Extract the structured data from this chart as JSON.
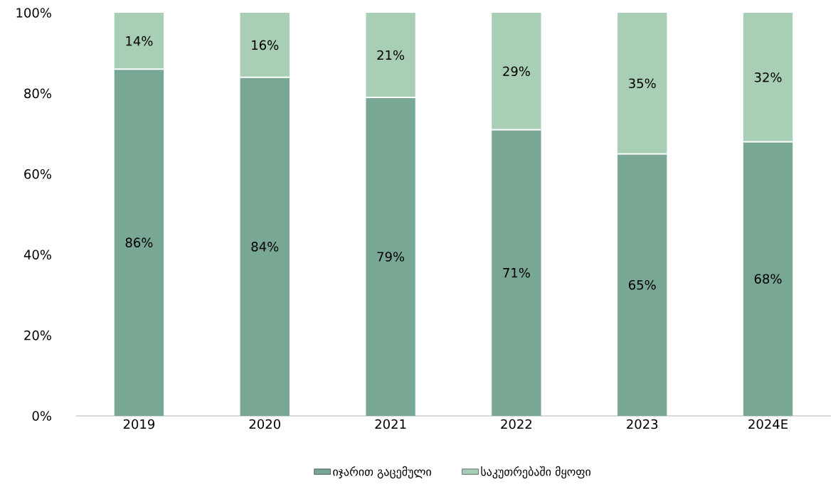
{
  "chart_data": {
    "type": "bar",
    "stacked": true,
    "categories": [
      "2019",
      "2020",
      "2021",
      "2022",
      "2023",
      "2024E"
    ],
    "series": [
      {
        "name": "იჯარით გაცემული",
        "color": "#78a893",
        "values": [
          86,
          84,
          79,
          71,
          65,
          68
        ],
        "value_labels": [
          "86%",
          "84%",
          "79%",
          "71%",
          "65%",
          "68%"
        ]
      },
      {
        "name": "საკუთრებაში მყოფი",
        "color": "#a8cfb5",
        "values": [
          14,
          16,
          21,
          29,
          35,
          32
        ],
        "value_labels": [
          "14%",
          "16%",
          "21%",
          "29%",
          "35%",
          "32%"
        ]
      }
    ],
    "ylim": [
      0,
      100
    ],
    "yticks": [
      {
        "value": 0,
        "label": "0%"
      },
      {
        "value": 20,
        "label": "20%"
      },
      {
        "value": 40,
        "label": "40%"
      },
      {
        "value": 60,
        "label": "60%"
      },
      {
        "value": 80,
        "label": "80%"
      },
      {
        "value": 100,
        "label": "100%"
      }
    ],
    "legend": "bottom"
  }
}
